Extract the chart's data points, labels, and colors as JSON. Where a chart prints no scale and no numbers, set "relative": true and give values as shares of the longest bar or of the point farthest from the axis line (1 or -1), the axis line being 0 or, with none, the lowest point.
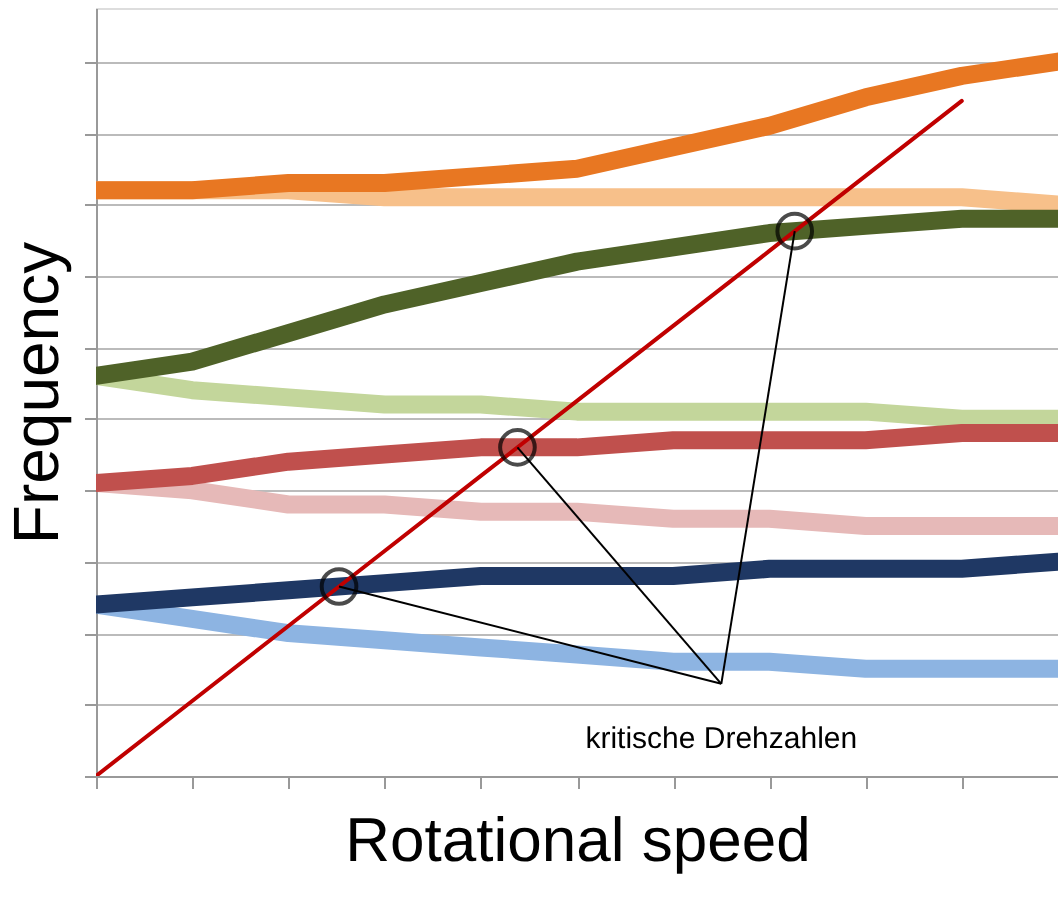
{
  "chart_data": {
    "type": "line",
    "xlabel": "Rotational speed",
    "ylabel": "Frequency",
    "relative": true,
    "grid": "y",
    "line_style": "solid",
    "marker": "none",
    "categories": [
      null,
      null,
      null,
      null,
      null,
      null,
      null,
      null,
      null,
      null,
      null
    ],
    "series": [
      {
        "color": "#f7c08a",
        "values": [
          0.82,
          0.82,
          0.82,
          0.81,
          0.81,
          0.81,
          0.81,
          0.81,
          0.81,
          0.81,
          0.8
        ]
      },
      {
        "color": "#e87722",
        "values": [
          0.82,
          0.82,
          0.83,
          0.83,
          0.84,
          0.85,
          0.88,
          0.91,
          0.95,
          0.98,
          1.0
        ]
      },
      {
        "color": "#c3d69b",
        "values": [
          0.56,
          0.54,
          0.53,
          0.52,
          0.52,
          0.51,
          0.51,
          0.51,
          0.51,
          0.5,
          0.5
        ]
      },
      {
        "color": "#4f6228",
        "values": [
          0.56,
          0.58,
          0.62,
          0.66,
          0.69,
          0.72,
          0.74,
          0.76,
          0.77,
          0.78,
          0.78
        ]
      },
      {
        "color": "#e6b9b8",
        "values": [
          0.41,
          0.4,
          0.38,
          0.38,
          0.37,
          0.37,
          0.36,
          0.36,
          0.35,
          0.35,
          0.35
        ]
      },
      {
        "color": "#c0504d",
        "values": [
          0.41,
          0.42,
          0.44,
          0.45,
          0.46,
          0.46,
          0.47,
          0.47,
          0.47,
          0.48,
          0.48
        ]
      },
      {
        "color": "#8db4e2",
        "values": [
          0.24,
          0.22,
          0.2,
          0.19,
          0.18,
          0.17,
          0.16,
          0.16,
          0.15,
          0.15,
          0.15
        ]
      },
      {
        "color": "#1f3864",
        "values": [
          0.24,
          0.25,
          0.26,
          0.27,
          0.28,
          0.28,
          0.28,
          0.29,
          0.29,
          0.29,
          0.3
        ]
      },
      {
        "color": "#c00000",
        "values": [
          0,
          0.105,
          0.21,
          0.315,
          0.42,
          0.525,
          0.63,
          0.735,
          0.84,
          0.945,
          null
        ]
      }
    ],
    "annotations": [
      "kritische Drehzahlen"
    ]
  }
}
